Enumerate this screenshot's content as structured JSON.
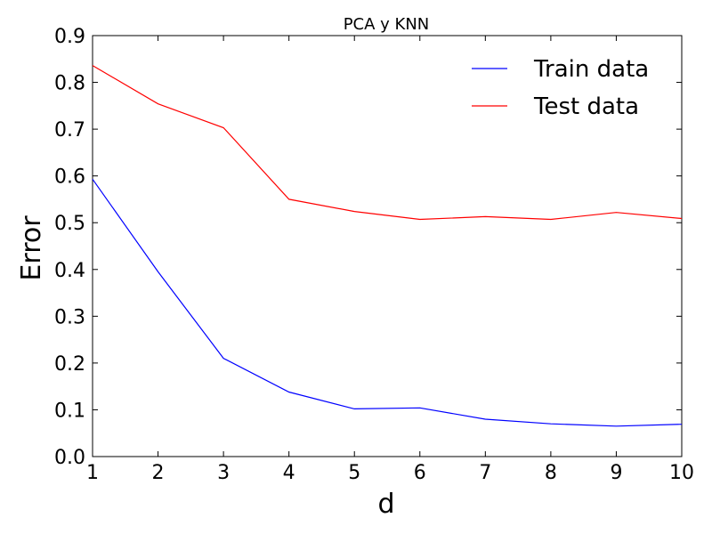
{
  "chart_data": {
    "type": "line",
    "title": "PCA y KNN",
    "xlabel": "d",
    "ylabel": "Error",
    "x": [
      1,
      2,
      3,
      4,
      5,
      6,
      7,
      8,
      9,
      10
    ],
    "xlim": [
      1,
      10
    ],
    "ylim": [
      0.0,
      0.9
    ],
    "xticks": [
      "1",
      "2",
      "3",
      "4",
      "5",
      "6",
      "7",
      "8",
      "9",
      "10"
    ],
    "yticks": [
      "0.0",
      "0.1",
      "0.2",
      "0.3",
      "0.4",
      "0.5",
      "0.6",
      "0.7",
      "0.8",
      "0.9"
    ],
    "grid": false,
    "legend_position": "top-right",
    "series": [
      {
        "name": "Train data",
        "color": "#0000ff",
        "values": [
          0.593,
          0.395,
          0.21,
          0.138,
          0.102,
          0.104,
          0.08,
          0.07,
          0.065,
          0.069
        ]
      },
      {
        "name": "Test data",
        "color": "#ff0000",
        "values": [
          0.836,
          0.754,
          0.703,
          0.55,
          0.524,
          0.507,
          0.513,
          0.507,
          0.522,
          0.509
        ]
      }
    ]
  }
}
